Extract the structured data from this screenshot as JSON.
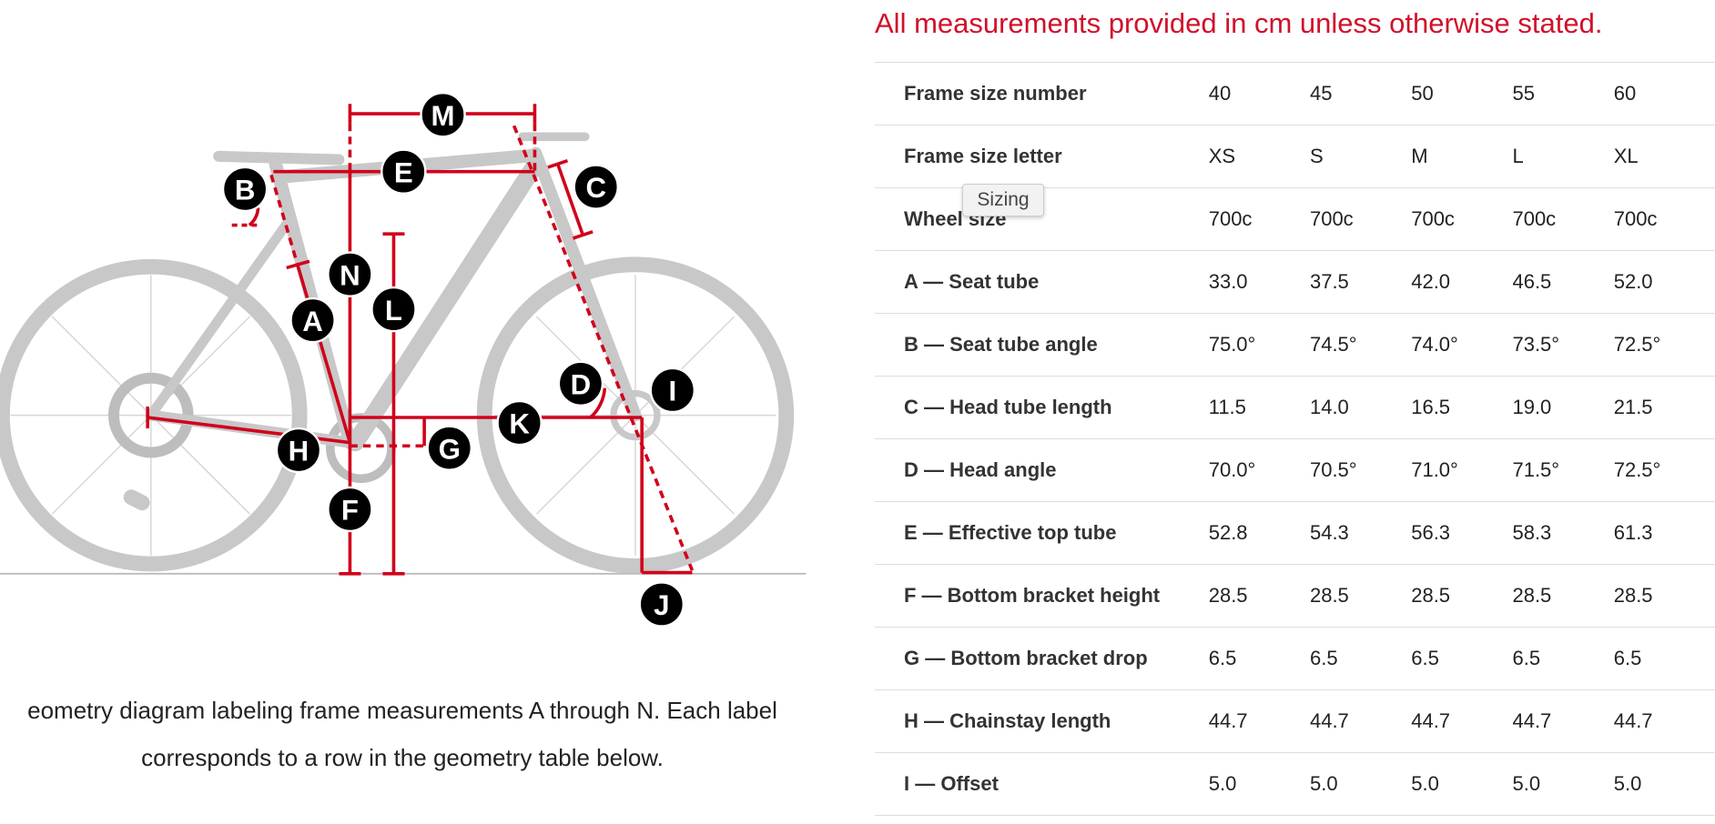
{
  "heading": "All measurements provided in cm unless otherwise stated.",
  "table": {
    "rows": [
      [
        "Frame size number",
        "40",
        "45",
        "50",
        "55",
        "60"
      ],
      [
        "Frame size letter",
        "XS",
        "S",
        "M",
        "L",
        "XL"
      ],
      [
        "Wheel size",
        "700c",
        "700c",
        "700c",
        "700c",
        "700c"
      ],
      [
        "A — Seat tube",
        "33.0",
        "37.5",
        "42.0",
        "46.5",
        "52.0"
      ],
      [
        "B — Seat tube angle",
        "75.0°",
        "74.5°",
        "74.0°",
        "73.5°",
        "72.5°"
      ],
      [
        "C — Head tube length",
        "11.5",
        "14.0",
        "16.5",
        "19.0",
        "21.5"
      ],
      [
        "D — Head angle",
        "70.0°",
        "70.5°",
        "71.0°",
        "71.5°",
        "72.5°"
      ],
      [
        "E — Effective top tube",
        "52.8",
        "54.3",
        "56.3",
        "58.3",
        "61.3"
      ],
      [
        "F — Bottom bracket height",
        "28.5",
        "28.5",
        "28.5",
        "28.5",
        "28.5"
      ],
      [
        "G — Bottom bracket drop",
        "6.5",
        "6.5",
        "6.5",
        "6.5",
        "6.5"
      ],
      [
        "H — Chainstay length",
        "44.7",
        "44.7",
        "44.7",
        "44.7",
        "44.7"
      ],
      [
        "I — Offset",
        "5.0",
        "5.0",
        "5.0",
        "5.0",
        "5.0"
      ]
    ]
  },
  "tooltip": "Sizing",
  "diagram": {
    "labels": [
      "M",
      "E",
      "B",
      "C",
      "N",
      "L",
      "A",
      "D",
      "I",
      "K",
      "H",
      "G",
      "F",
      "J"
    ]
  },
  "caption": {
    "lines": [
      "eometry diagram labeling frame measurements A through N. Each label",
      "corresponds to a row in the geometry table below."
    ]
  }
}
